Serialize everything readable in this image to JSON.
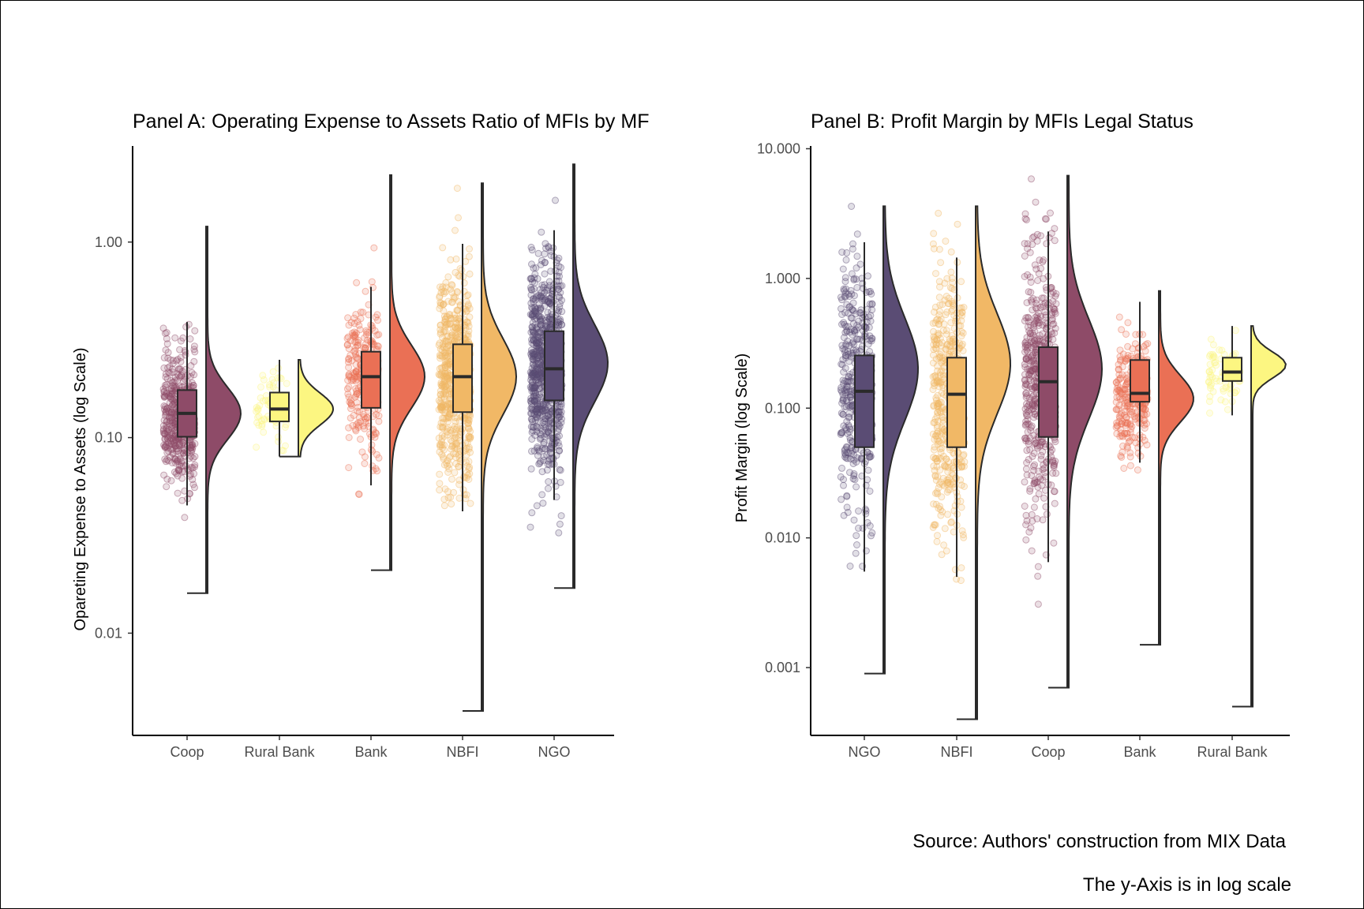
{
  "colors": {
    "Coop": "#8e4b68",
    "Rural Bank": "#fcf681",
    "Bank": "#ea7055",
    "NBFI": "#f1b866",
    "NGO": "#5a4c74"
  },
  "chart_data": [
    {
      "type": "raincloud",
      "title": "Panel A: Operating Expense to Assets Ratio of MFIs by MF",
      "xlabel": "",
      "ylabel": "Opareting Expense to Assets (log Scale)",
      "yscale": "log",
      "ylim": [
        0.003,
        3.1
      ],
      "yticks": [
        0.01,
        0.1,
        1
      ],
      "ytick_labels": [
        "0.01",
        "0.10",
        "1.00"
      ],
      "grid": false,
      "categories": [
        "Coop",
        "Rural Bank",
        "Bank",
        "NBFI",
        "NGO"
      ],
      "series": [
        {
          "category": "Coop",
          "min": 0.045,
          "q1": 0.101,
          "median": 0.133,
          "q3": 0.175,
          "max": 0.39,
          "density_min": 0.016,
          "density_max": 1.2,
          "density_peak": 0.133,
          "n_points": 450
        },
        {
          "category": "Rural Bank",
          "min": 0.08,
          "q1": 0.121,
          "median": 0.14,
          "q3": 0.17,
          "max": 0.25,
          "density_min": 0.08,
          "density_max": 0.25,
          "density_peak": 0.14,
          "n_points": 70
        },
        {
          "category": "Bank",
          "min": 0.057,
          "q1": 0.142,
          "median": 0.205,
          "q3": 0.275,
          "max": 0.59,
          "density_min": 0.021,
          "density_max": 2.2,
          "density_peak": 0.205,
          "n_points": 260
        },
        {
          "category": "NBFI",
          "min": 0.042,
          "q1": 0.135,
          "median": 0.205,
          "q3": 0.3,
          "max": 0.98,
          "density_min": 0.004,
          "density_max": 2.0,
          "density_peak": 0.205,
          "n_points": 650
        },
        {
          "category": "NGO",
          "min": 0.048,
          "q1": 0.155,
          "median": 0.225,
          "q3": 0.35,
          "max": 1.15,
          "density_min": 0.017,
          "density_max": 2.5,
          "density_peak": 0.24,
          "n_points": 800
        }
      ]
    },
    {
      "type": "raincloud",
      "title": "Panel B: Profit Margin by MFIs Legal Status",
      "xlabel": "",
      "ylabel": "Profit Margin (log Scale)",
      "yscale": "log",
      "ylim": [
        0.0003,
        10.5
      ],
      "yticks": [
        0.001,
        0.01,
        0.1,
        1,
        10
      ],
      "ytick_labels": [
        "0.001",
        "0.010",
        "0.100",
        "1.000",
        "10.000"
      ],
      "grid": false,
      "categories": [
        "NGO",
        "NBFI",
        "Coop",
        "Bank",
        "Rural Bank"
      ],
      "series": [
        {
          "category": "NGO",
          "min": 0.0055,
          "q1": 0.05,
          "median": 0.135,
          "q3": 0.255,
          "max": 1.9,
          "density_min": 0.0009,
          "density_max": 3.6,
          "density_peak": 0.2,
          "n_points": 420
        },
        {
          "category": "NBFI",
          "min": 0.005,
          "q1": 0.05,
          "median": 0.128,
          "q3": 0.245,
          "max": 1.45,
          "density_min": 0.0004,
          "density_max": 3.6,
          "density_peak": 0.22,
          "n_points": 500
        },
        {
          "category": "Coop",
          "min": 0.0065,
          "q1": 0.06,
          "median": 0.16,
          "q3": 0.295,
          "max": 2.3,
          "density_min": 0.0007,
          "density_max": 6.2,
          "density_peak": 0.2,
          "n_points": 520
        },
        {
          "category": "Bank",
          "min": 0.038,
          "q1": 0.112,
          "median": 0.13,
          "q3": 0.235,
          "max": 0.66,
          "density_min": 0.0015,
          "density_max": 0.8,
          "density_peak": 0.118,
          "n_points": 260
        },
        {
          "category": "Rural Bank",
          "min": 0.088,
          "q1": 0.162,
          "median": 0.19,
          "q3": 0.245,
          "max": 0.43,
          "density_min": 0.0005,
          "density_max": 0.43,
          "density_peak": 0.215,
          "n_points": 70
        }
      ]
    }
  ],
  "captions": {
    "source": "Source: Authors' construction from MIX Data",
    "note": "The y-Axis is in log scale"
  }
}
